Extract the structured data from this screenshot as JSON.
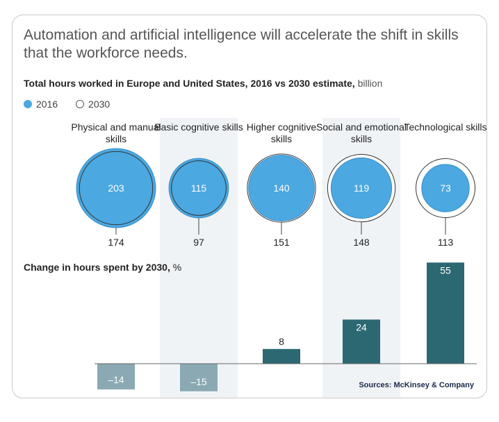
{
  "headline": "Automation and artificial intelligence will accelerate the shift in skills that the workforce needs.",
  "subtitle": {
    "bold": "Total hours worked in Europe and United States, 2016 vs 2030 estimate,",
    "unit": "billion"
  },
  "legend": {
    "y2016": "2016",
    "y2030": "2030"
  },
  "side_label": {
    "bold": "Change in hours spent by 2030,",
    "unit": "%"
  },
  "source": "Sources: McKinsey & Company",
  "colors": {
    "circle_2016": "#4ba8e0",
    "circle_2016_edge": "#3a8fc4",
    "circle_2030_outline": "#333333",
    "bar_positive": "#2b6872",
    "bar_negative": "#8aa9b3",
    "shade": "#f0f3f6"
  },
  "chart_data": [
    {
      "type": "bubble",
      "title": "Total hours worked in Europe and United States, 2016 vs 2030 estimate, billion",
      "categories": [
        "Physical and manual skills",
        "Basic cognitive skills",
        "Higher cognitive skills",
        "Social and emotional skills",
        "Technological skills"
      ],
      "series": [
        {
          "name": "2016",
          "values": [
            203,
            115,
            140,
            119,
            73
          ]
        },
        {
          "name": "2030",
          "values": [
            174,
            97,
            151,
            148,
            113
          ]
        }
      ]
    },
    {
      "type": "bar",
      "title": "Change in hours spent by 2030, %",
      "categories": [
        "Physical and manual skills",
        "Basic cognitive skills",
        "Higher cognitive skills",
        "Social and emotional skills",
        "Technological skills"
      ],
      "values": [
        -14,
        -15,
        8,
        24,
        55
      ],
      "labels": [
        "–14",
        "–15",
        "8",
        "24",
        "55"
      ],
      "ylim": [
        -15,
        55
      ]
    }
  ]
}
